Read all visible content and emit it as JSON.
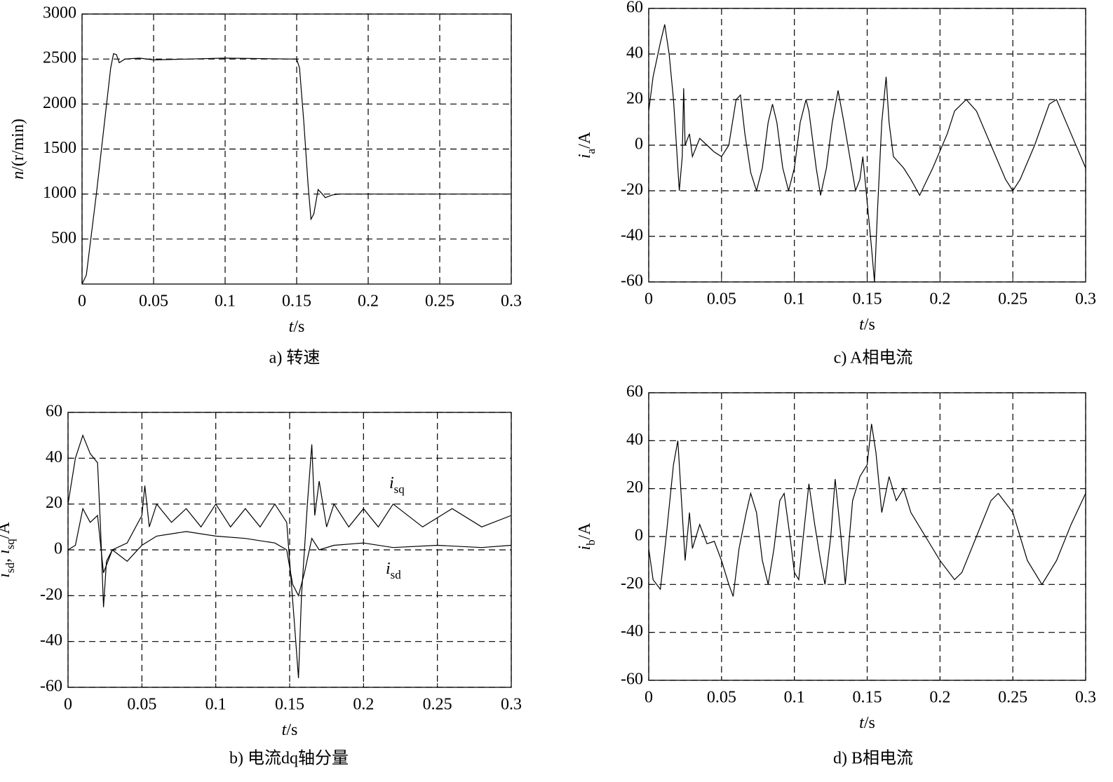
{
  "chart_data": [
    {
      "type": "line",
      "caption": "a) 转速",
      "xlabel": [
        {
          "text": "t",
          "style": "italic"
        },
        {
          "text": "/s"
        }
      ],
      "ylabel": [
        {
          "text": "n",
          "style": "italic"
        },
        {
          "text": "/(r/min)"
        }
      ],
      "xlim": [
        0,
        0.3
      ],
      "xticks": [
        0,
        0.05,
        0.1,
        0.15,
        0.2,
        0.25,
        0.3
      ],
      "ylim": [
        0,
        3000
      ],
      "yticks": [
        500,
        1000,
        1500,
        2000,
        2500,
        3000
      ],
      "grid": true,
      "series": [
        {
          "color": "#000000",
          "x": [
            0,
            0.003,
            0.01,
            0.02,
            0.022,
            0.024,
            0.026,
            0.03,
            0.04,
            0.05,
            0.1,
            0.148,
            0.15,
            0.152,
            0.155,
            0.158,
            0.16,
            0.162,
            0.165,
            0.168,
            0.17,
            0.175,
            0.18,
            0.2,
            0.3
          ],
          "values": [
            0,
            100,
            1000,
            2400,
            2560,
            2550,
            2460,
            2500,
            2510,
            2490,
            2510,
            2500,
            2500,
            2400,
            1800,
            1100,
            720,
            780,
            1050,
            1000,
            960,
            990,
            1000,
            1000,
            1000
          ]
        }
      ]
    },
    {
      "type": "line",
      "caption": "c) A相电流",
      "xlabel": [
        {
          "text": "t",
          "style": "italic"
        },
        {
          "text": "/s"
        }
      ],
      "ylabel": [
        {
          "text": "i",
          "style": "italic"
        },
        {
          "text": "a",
          "style": "sub"
        },
        {
          "text": "/A"
        }
      ],
      "xlim": [
        0,
        0.3
      ],
      "xticks": [
        0,
        0.05,
        0.1,
        0.15,
        0.2,
        0.25,
        0.3
      ],
      "ylim": [
        -60,
        60
      ],
      "yticks": [
        -60,
        -40,
        -20,
        0,
        20,
        40,
        60
      ],
      "grid": true,
      "series": [
        {
          "color": "#000000",
          "x": [
            0,
            0.003,
            0.008,
            0.011,
            0.014,
            0.017,
            0.019,
            0.021,
            0.023,
            0.024,
            0.025,
            0.028,
            0.03,
            0.035,
            0.04,
            0.045,
            0.05,
            0.055,
            0.06,
            0.063,
            0.066,
            0.07,
            0.074,
            0.078,
            0.082,
            0.085,
            0.088,
            0.092,
            0.096,
            0.1,
            0.104,
            0.108,
            0.11,
            0.115,
            0.118,
            0.122,
            0.126,
            0.13,
            0.134,
            0.138,
            0.142,
            0.145,
            0.147,
            0.15,
            0.153,
            0.155,
            0.157,
            0.16,
            0.163,
            0.165,
            0.168,
            0.175,
            0.18,
            0.186,
            0.195,
            0.205,
            0.21,
            0.218,
            0.225,
            0.235,
            0.245,
            0.25,
            0.255,
            0.265,
            0.275,
            0.28,
            0.29,
            0.3
          ],
          "values": [
            15,
            30,
            45,
            53,
            40,
            20,
            0,
            -20,
            -5,
            25,
            0,
            5,
            -5,
            3,
            0,
            -3,
            -5,
            0,
            20,
            22,
            5,
            -12,
            -20,
            -10,
            10,
            18,
            10,
            -10,
            -20,
            -10,
            10,
            20,
            15,
            -10,
            -22,
            -10,
            10,
            24,
            10,
            -5,
            -20,
            -15,
            -5,
            -25,
            -45,
            -60,
            -30,
            10,
            30,
            10,
            -5,
            -10,
            -15,
            -22,
            -10,
            5,
            15,
            20,
            15,
            0,
            -15,
            -20,
            -15,
            0,
            18,
            20,
            5,
            -10
          ]
        }
      ]
    },
    {
      "type": "line",
      "caption": "b) 电流dq轴分量",
      "xlabel": [
        {
          "text": "t",
          "style": "italic"
        },
        {
          "text": "/s"
        }
      ],
      "ylabel": [
        {
          "text": "i",
          "style": "italic"
        },
        {
          "text": "sd",
          "style": "sub"
        },
        {
          "text": ", "
        },
        {
          "text": "i",
          "style": "italic"
        },
        {
          "text": "sq",
          "style": "sub"
        },
        {
          "text": "/A"
        }
      ],
      "xlim": [
        0,
        0.3
      ],
      "xticks": [
        0,
        0.05,
        0.1,
        0.15,
        0.2,
        0.25,
        0.3
      ],
      "ylim": [
        -60,
        60
      ],
      "yticks": [
        -60,
        -40,
        -20,
        0,
        20,
        40,
        60
      ],
      "grid": true,
      "annotations": [
        [
          {
            "text": "i",
            "style": "italic"
          },
          {
            "text": "sq",
            "style": "sub"
          }
        ],
        [
          {
            "text": "i",
            "style": "italic"
          },
          {
            "text": "sd",
            "style": "sub"
          }
        ]
      ],
      "series": [
        {
          "color": "#000000",
          "x": [
            0,
            0.005,
            0.01,
            0.015,
            0.02,
            0.022,
            0.024,
            0.026,
            0.03,
            0.04,
            0.05,
            0.052,
            0.055,
            0.06,
            0.07,
            0.08,
            0.09,
            0.1,
            0.11,
            0.12,
            0.13,
            0.14,
            0.148,
            0.15,
            0.153,
            0.156,
            0.158,
            0.162,
            0.165,
            0.167,
            0.17,
            0.175,
            0.18,
            0.19,
            0.2,
            0.21,
            0.22,
            0.24,
            0.26,
            0.28,
            0.3
          ],
          "values": [
            20,
            40,
            50,
            42,
            38,
            10,
            -25,
            -5,
            0,
            3,
            15,
            28,
            10,
            20,
            12,
            18,
            10,
            20,
            10,
            18,
            10,
            20,
            12,
            -5,
            -30,
            -56,
            -20,
            20,
            46,
            15,
            30,
            10,
            20,
            10,
            18,
            10,
            20,
            10,
            18,
            10,
            15
          ]
        },
        {
          "color": "#000000",
          "x": [
            0,
            0.005,
            0.01,
            0.015,
            0.02,
            0.024,
            0.03,
            0.04,
            0.05,
            0.06,
            0.08,
            0.1,
            0.12,
            0.14,
            0.148,
            0.152,
            0.156,
            0.16,
            0.165,
            0.17,
            0.18,
            0.2,
            0.22,
            0.25,
            0.28,
            0.3
          ],
          "values": [
            0,
            2,
            18,
            12,
            15,
            -10,
            0,
            -5,
            2,
            6,
            8,
            6,
            5,
            3,
            0,
            -15,
            -20,
            -10,
            5,
            0,
            2,
            3,
            1,
            2,
            1,
            2
          ]
        }
      ]
    },
    {
      "type": "line",
      "caption": "d) B相电流",
      "xlabel": [
        {
          "text": "t",
          "style": "italic"
        },
        {
          "text": "/s"
        }
      ],
      "ylabel": [
        {
          "text": "i",
          "style": "italic"
        },
        {
          "text": "b",
          "style": "sub"
        },
        {
          "text": "/A"
        }
      ],
      "xlim": [
        0,
        0.3
      ],
      "xticks": [
        0,
        0.05,
        0.1,
        0.15,
        0.2,
        0.25,
        0.3
      ],
      "ylim": [
        -60,
        60
      ],
      "yticks": [
        -60,
        -40,
        -20,
        0,
        20,
        40,
        60
      ],
      "grid": true,
      "series": [
        {
          "color": "#000000",
          "x": [
            0,
            0.003,
            0.008,
            0.012,
            0.017,
            0.02,
            0.022,
            0.025,
            0.028,
            0.03,
            0.035,
            0.04,
            0.045,
            0.05,
            0.055,
            0.058,
            0.062,
            0.067,
            0.07,
            0.074,
            0.078,
            0.082,
            0.086,
            0.09,
            0.093,
            0.097,
            0.1,
            0.103,
            0.107,
            0.11,
            0.114,
            0.118,
            0.121,
            0.125,
            0.128,
            0.132,
            0.135,
            0.14,
            0.145,
            0.15,
            0.153,
            0.156,
            0.16,
            0.165,
            0.17,
            0.175,
            0.18,
            0.19,
            0.2,
            0.21,
            0.215,
            0.225,
            0.235,
            0.24,
            0.25,
            0.26,
            0.27,
            0.28,
            0.29,
            0.3
          ],
          "values": [
            -5,
            -18,
            -22,
            0,
            30,
            40,
            20,
            -10,
            10,
            -5,
            5,
            -3,
            -2,
            -10,
            -20,
            -25,
            -5,
            10,
            18,
            10,
            -10,
            -20,
            -5,
            15,
            18,
            0,
            -15,
            -18,
            5,
            22,
            5,
            -10,
            -20,
            0,
            24,
            0,
            -20,
            15,
            25,
            30,
            47,
            35,
            10,
            25,
            15,
            20,
            10,
            0,
            -10,
            -18,
            -15,
            0,
            15,
            18,
            10,
            -10,
            -20,
            -10,
            5,
            18
          ]
        }
      ]
    }
  ]
}
